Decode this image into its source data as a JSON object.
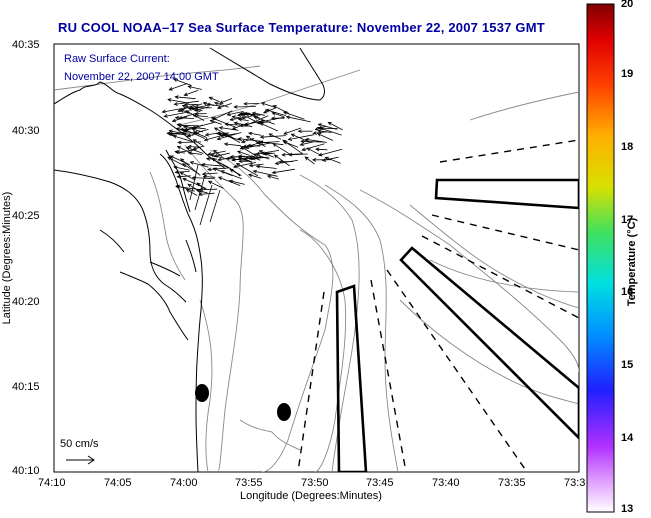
{
  "title": "RU COOL  NOAA–17  Sea Surface Temperature:  November 22, 2007 1537 GMT",
  "current_note": {
    "line1": "Raw Surface Current:",
    "line2": "November 22, 2007 14:00 GMT"
  },
  "scale_label": "50 cm/s",
  "x_axis": {
    "label": "Longitude (Degrees:Minutes)",
    "ticks": [
      "74:10",
      "74:05",
      "74:00",
      "73:55",
      "73:50",
      "73:45",
      "73:40",
      "73:35",
      "73:3"
    ]
  },
  "y_axis": {
    "label": "Latitude (Degrees:Minutes)",
    "ticks": [
      "40:35",
      "40:30",
      "40:25",
      "40:20",
      "40:15",
      "40:10"
    ]
  },
  "colorbar": {
    "label": "Temperature (°C)",
    "ticks": [
      "20",
      "19",
      "18",
      "17",
      "16",
      "15",
      "14",
      "13"
    ],
    "min": 13,
    "max": 20
  },
  "colors": {
    "title": "#0000a0",
    "contour": "#888888",
    "coast": "#000000"
  }
}
